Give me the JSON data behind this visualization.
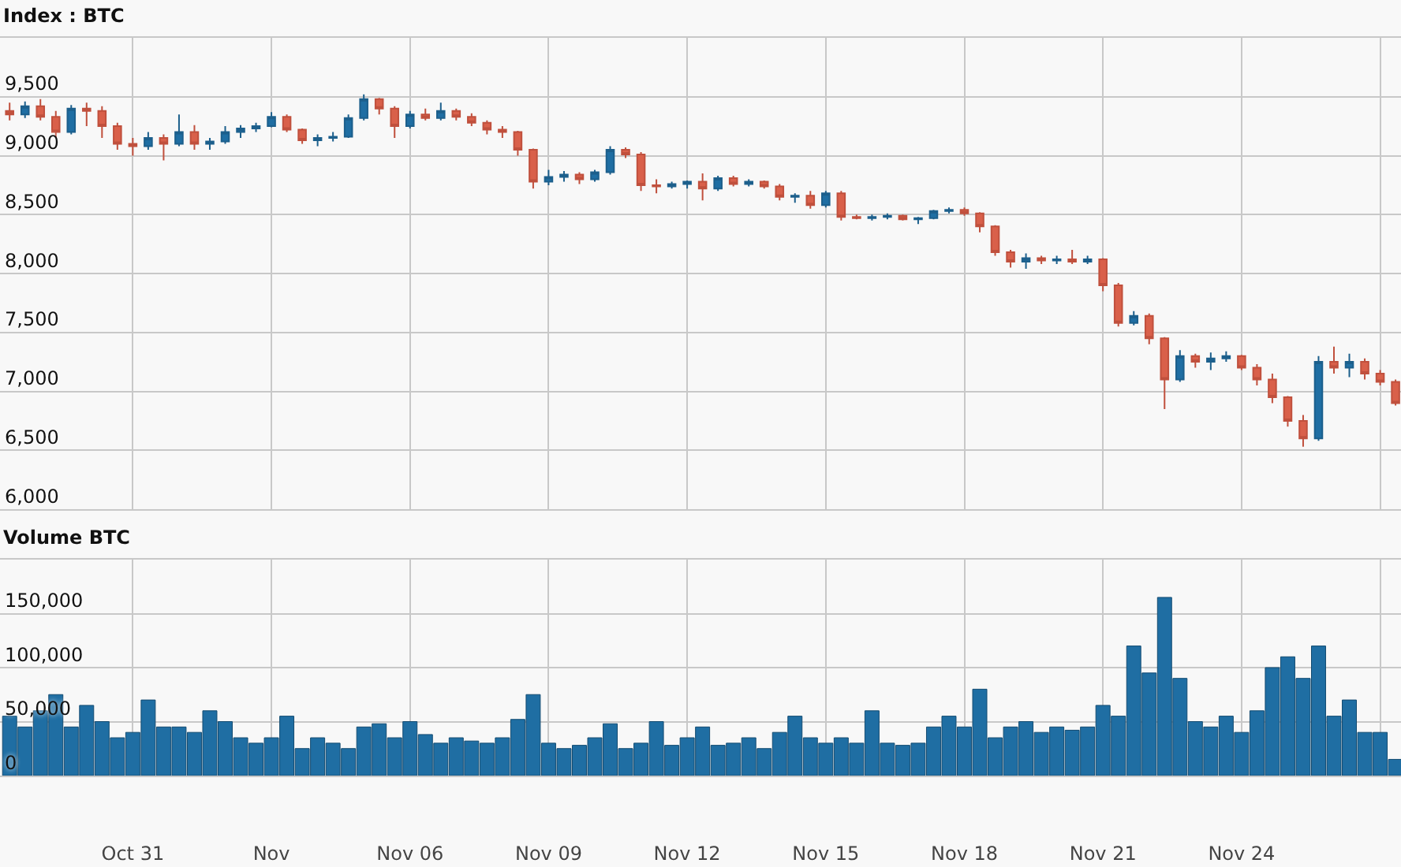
{
  "chart_data": [
    {
      "type": "candlestick",
      "title": "Index : BTC",
      "grid": true,
      "tick_labels": "y",
      "x": [
        "--10-28T08:00",
        "--10-28T16:00",
        "--10-29T00:00",
        "--10-29T08:00",
        "--10-29T16:00",
        "--10-30T00:00",
        "--10-30T08:00",
        "--10-30T16:00",
        "--10-31T00:00",
        "--10-31T08:00",
        "--10-31T16:00",
        "--11-01T00:00",
        "--11-01T08:00",
        "--11-01T16:00",
        "--11-02T00:00",
        "--11-02T08:00",
        "--11-02T16:00",
        "--11-03T00:00",
        "--11-03T08:00",
        "--11-03T16:00",
        "--11-04T00:00",
        "--11-04T08:00",
        "--11-04T16:00",
        "--11-05T00:00",
        "--11-05T08:00",
        "--11-05T16:00",
        "--11-06T00:00",
        "--11-06T08:00",
        "--11-06T16:00",
        "--11-07T00:00",
        "--11-07T08:00",
        "--11-07T16:00",
        "--11-08T00:00",
        "--11-08T08:00",
        "--11-08T16:00",
        "--11-09T00:00",
        "--11-09T08:00",
        "--11-09T16:00",
        "--11-10T00:00",
        "--11-10T08:00",
        "--11-10T16:00",
        "--11-11T00:00",
        "--11-11T08:00",
        "--11-11T16:00",
        "--11-12T00:00",
        "--11-12T08:00",
        "--11-12T16:00",
        "--11-13T00:00",
        "--11-13T08:00",
        "--11-13T16:00",
        "--11-14T00:00",
        "--11-14T08:00",
        "--11-14T16:00",
        "--11-15T00:00",
        "--11-15T08:00",
        "--11-15T16:00",
        "--11-16T00:00",
        "--11-16T08:00",
        "--11-16T16:00",
        "--11-17T00:00",
        "--11-17T08:00",
        "--11-17T16:00",
        "--11-18T00:00",
        "--11-18T08:00",
        "--11-18T16:00",
        "--11-19T00:00",
        "--11-19T08:00",
        "--11-19T16:00",
        "--11-20T00:00",
        "--11-20T08:00",
        "--11-20T16:00",
        "--11-21T00:00",
        "--11-21T08:00",
        "--11-21T16:00",
        "--11-22T00:00",
        "--11-22T08:00",
        "--11-22T16:00",
        "--11-23T00:00",
        "--11-23T08:00",
        "--11-23T16:00",
        "--11-24T00:00",
        "--11-24T08:00",
        "--11-24T16:00",
        "--11-25T00:00",
        "--11-25T08:00",
        "--11-25T16:00",
        "--11-26T00:00",
        "--11-26T08:00",
        "--11-26T16:00",
        "--11-27T00:00",
        "--11-27T08:00"
      ],
      "ohlc": [
        [
          9380,
          9450,
          9300,
          9350
        ],
        [
          9350,
          9460,
          9320,
          9420
        ],
        [
          9420,
          9480,
          9300,
          9330
        ],
        [
          9330,
          9380,
          9150,
          9200
        ],
        [
          9200,
          9430,
          9180,
          9400
        ],
        [
          9400,
          9450,
          9250,
          9380
        ],
        [
          9380,
          9420,
          9150,
          9250
        ],
        [
          9250,
          9280,
          9050,
          9100
        ],
        [
          9100,
          9150,
          9000,
          9080
        ],
        [
          9080,
          9200,
          9050,
          9150
        ],
        [
          9150,
          9180,
          8960,
          9100
        ],
        [
          9100,
          9350,
          9080,
          9200
        ],
        [
          9200,
          9260,
          9050,
          9100
        ],
        [
          9100,
          9150,
          9050,
          9120
        ],
        [
          9120,
          9250,
          9100,
          9200
        ],
        [
          9200,
          9260,
          9150,
          9230
        ],
        [
          9230,
          9280,
          9200,
          9250
        ],
        [
          9250,
          9370,
          9240,
          9330
        ],
        [
          9330,
          9350,
          9200,
          9220
        ],
        [
          9220,
          9230,
          9100,
          9130
        ],
        [
          9130,
          9180,
          9080,
          9150
        ],
        [
          9150,
          9200,
          9120,
          9160
        ],
        [
          9160,
          9350,
          9150,
          9320
        ],
        [
          9320,
          9520,
          9300,
          9480
        ],
        [
          9480,
          9490,
          9350,
          9400
        ],
        [
          9400,
          9420,
          9150,
          9250
        ],
        [
          9250,
          9380,
          9230,
          9350
        ],
        [
          9350,
          9400,
          9300,
          9320
        ],
        [
          9320,
          9450,
          9300,
          9380
        ],
        [
          9380,
          9400,
          9300,
          9330
        ],
        [
          9330,
          9360,
          9250,
          9280
        ],
        [
          9280,
          9300,
          9180,
          9220
        ],
        [
          9220,
          9250,
          9150,
          9200
        ],
        [
          9200,
          9210,
          9000,
          9050
        ],
        [
          9050,
          9060,
          8720,
          8780
        ],
        [
          8780,
          8880,
          8750,
          8820
        ],
        [
          8820,
          8870,
          8780,
          8840
        ],
        [
          8840,
          8860,
          8760,
          8800
        ],
        [
          8800,
          8880,
          8780,
          8860
        ],
        [
          8860,
          9080,
          8840,
          9050
        ],
        [
          9050,
          9070,
          8980,
          9010
        ],
        [
          9010,
          9030,
          8700,
          8750
        ],
        [
          8750,
          8800,
          8680,
          8740
        ],
        [
          8740,
          8780,
          8720,
          8760
        ],
        [
          8760,
          8790,
          8720,
          8780
        ],
        [
          8780,
          8850,
          8620,
          8720
        ],
        [
          8720,
          8830,
          8700,
          8810
        ],
        [
          8810,
          8830,
          8740,
          8760
        ],
        [
          8760,
          8800,
          8740,
          8780
        ],
        [
          8780,
          8790,
          8720,
          8740
        ],
        [
          8740,
          8760,
          8620,
          8650
        ],
        [
          8650,
          8680,
          8600,
          8660
        ],
        [
          8660,
          8700,
          8550,
          8580
        ],
        [
          8580,
          8700,
          8560,
          8680
        ],
        [
          8680,
          8700,
          8450,
          8480
        ],
        [
          8480,
          8500,
          8460,
          8470
        ],
        [
          8470,
          8500,
          8450,
          8480
        ],
        [
          8480,
          8510,
          8460,
          8490
        ],
        [
          8490,
          8500,
          8450,
          8460
        ],
        [
          8460,
          8480,
          8420,
          8470
        ],
        [
          8470,
          8540,
          8460,
          8530
        ],
        [
          8530,
          8560,
          8510,
          8540
        ],
        [
          8540,
          8560,
          8490,
          8510
        ],
        [
          8510,
          8520,
          8350,
          8400
        ],
        [
          8400,
          8410,
          8150,
          8180
        ],
        [
          8180,
          8200,
          8050,
          8100
        ],
        [
          8100,
          8170,
          8040,
          8130
        ],
        [
          8130,
          8150,
          8080,
          8110
        ],
        [
          8110,
          8150,
          8080,
          8120
        ],
        [
          8120,
          8200,
          8080,
          8100
        ],
        [
          8100,
          8150,
          8080,
          8120
        ],
        [
          8120,
          8130,
          7850,
          7900
        ],
        [
          7900,
          7920,
          7550,
          7580
        ],
        [
          7580,
          7680,
          7560,
          7640
        ],
        [
          7640,
          7660,
          7400,
          7450
        ],
        [
          7450,
          7460,
          6850,
          7100
        ],
        [
          7100,
          7350,
          7080,
          7300
        ],
        [
          7300,
          7320,
          7200,
          7250
        ],
        [
          7250,
          7330,
          7180,
          7280
        ],
        [
          7280,
          7340,
          7250,
          7300
        ],
        [
          7300,
          7310,
          7180,
          7200
        ],
        [
          7200,
          7230,
          7050,
          7100
        ],
        [
          7100,
          7150,
          6900,
          6950
        ],
        [
          6950,
          6960,
          6700,
          6750
        ],
        [
          6750,
          6800,
          6530,
          6600
        ],
        [
          6600,
          7300,
          6580,
          7250
        ],
        [
          7250,
          7380,
          7150,
          7200
        ],
        [
          7200,
          7320,
          7120,
          7250
        ],
        [
          7250,
          7280,
          7100,
          7150
        ],
        [
          7150,
          7180,
          7050,
          7080
        ],
        [
          7080,
          7100,
          6880,
          6900
        ]
      ],
      "xlim": [
        "--10-28T03:00",
        "--11-27T10:50"
      ],
      "xticks": [
        {
          "value": "--10-31",
          "label": "Oct 31"
        },
        {
          "value": "--11-03",
          "label": "Nov"
        },
        {
          "value": "--11-06",
          "label": "Nov 06"
        },
        {
          "value": "--11-09",
          "label": "Nov 09"
        },
        {
          "value": "--11-12",
          "label": "Nov 12"
        },
        {
          "value": "--11-15",
          "label": "Nov 15"
        },
        {
          "value": "--11-18",
          "label": "Nov 18"
        },
        {
          "value": "--11-21",
          "label": "Nov 21"
        },
        {
          "value": "--11-24",
          "label": "Nov 24"
        },
        {
          "value": "--11-27",
          "label": null
        }
      ],
      "ylim": [
        6000,
        10000
      ],
      "yticks": [
        {
          "value": 6000,
          "label": "6,000"
        },
        {
          "value": 6500,
          "label": "6,500"
        },
        {
          "value": 7000,
          "label": "7,000"
        },
        {
          "value": 7500,
          "label": "7,500"
        },
        {
          "value": 8000,
          "label": "8,000"
        },
        {
          "value": 8500,
          "label": "8,500"
        },
        {
          "value": 9000,
          "label": "9,000"
        },
        {
          "value": 9500,
          "label": "9,500"
        }
      ]
    },
    {
      "type": "bar",
      "title": "Volume BTC",
      "grid": true,
      "color": "#1f6ea3",
      "x": [
        "--10-28T08:00",
        "--10-28T16:00",
        "--10-29T00:00",
        "--10-29T08:00",
        "--10-29T16:00",
        "--10-30T00:00",
        "--10-30T08:00",
        "--10-30T16:00",
        "--10-31T00:00",
        "--10-31T08:00",
        "--10-31T16:00",
        "--11-01T00:00",
        "--11-01T08:00",
        "--11-01T16:00",
        "--11-02T00:00",
        "--11-02T08:00",
        "--11-02T16:00",
        "--11-03T00:00",
        "--11-03T08:00",
        "--11-03T16:00",
        "--11-04T00:00",
        "--11-04T08:00",
        "--11-04T16:00",
        "--11-05T00:00",
        "--11-05T08:00",
        "--11-05T16:00",
        "--11-06T00:00",
        "--11-06T08:00",
        "--11-06T16:00",
        "--11-07T00:00",
        "--11-07T08:00",
        "--11-07T16:00",
        "--11-08T00:00",
        "--11-08T08:00",
        "--11-08T16:00",
        "--11-09T00:00",
        "--11-09T08:00",
        "--11-09T16:00",
        "--11-10T00:00",
        "--11-10T08:00",
        "--11-10T16:00",
        "--11-11T00:00",
        "--11-11T08:00",
        "--11-11T16:00",
        "--11-12T00:00",
        "--11-12T08:00",
        "--11-12T16:00",
        "--11-13T00:00",
        "--11-13T08:00",
        "--11-13T16:00",
        "--11-14T00:00",
        "--11-14T08:00",
        "--11-14T16:00",
        "--11-15T00:00",
        "--11-15T08:00",
        "--11-15T16:00",
        "--11-16T00:00",
        "--11-16T08:00",
        "--11-16T16:00",
        "--11-17T00:00",
        "--11-17T08:00",
        "--11-17T16:00",
        "--11-18T00:00",
        "--11-18T08:00",
        "--11-18T16:00",
        "--11-19T00:00",
        "--11-19T08:00",
        "--11-19T16:00",
        "--11-20T00:00",
        "--11-20T08:00",
        "--11-20T16:00",
        "--11-21T00:00",
        "--11-21T08:00",
        "--11-21T16:00",
        "--11-22T00:00",
        "--11-22T08:00",
        "--11-22T16:00",
        "--11-23T00:00",
        "--11-23T08:00",
        "--11-23T16:00",
        "--11-24T00:00",
        "--11-24T08:00",
        "--11-24T16:00",
        "--11-25T00:00",
        "--11-25T08:00",
        "--11-25T16:00",
        "--11-26T00:00",
        "--11-26T08:00",
        "--11-26T16:00",
        "--11-27T00:00",
        "--11-27T08:00"
      ],
      "values": [
        55000,
        45000,
        60000,
        75000,
        45000,
        65000,
        50000,
        35000,
        40000,
        70000,
        45000,
        45000,
        40000,
        60000,
        50000,
        35000,
        30000,
        35000,
        55000,
        25000,
        35000,
        30000,
        25000,
        45000,
        48000,
        35000,
        50000,
        38000,
        30000,
        35000,
        32000,
        30000,
        35000,
        52000,
        75000,
        30000,
        25000,
        28000,
        35000,
        48000,
        25000,
        30000,
        50000,
        28000,
        35000,
        45000,
        28000,
        30000,
        35000,
        25000,
        40000,
        55000,
        35000,
        30000,
        35000,
        30000,
        60000,
        30000,
        28000,
        30000,
        45000,
        55000,
        45000,
        80000,
        35000,
        45000,
        50000,
        40000,
        45000,
        42000,
        45000,
        65000,
        55000,
        120000,
        95000,
        165000,
        90000,
        50000,
        45000,
        55000,
        40000,
        60000,
        100000,
        110000,
        90000,
        120000,
        55000,
        70000,
        40000,
        40000,
        15000
      ],
      "xlim": [
        "--10-28T03:00",
        "--11-27T10:50"
      ],
      "xticks": [
        {
          "value": "--10-31",
          "label": "Oct 31"
        },
        {
          "value": "--11-03",
          "label": "Nov"
        },
        {
          "value": "--11-06",
          "label": "Nov 06"
        },
        {
          "value": "--11-09",
          "label": "Nov 09"
        },
        {
          "value": "--11-12",
          "label": "Nov 12"
        },
        {
          "value": "--11-15",
          "label": "Nov 15"
        },
        {
          "value": "--11-18",
          "label": "Nov 18"
        },
        {
          "value": "--11-21",
          "label": "Nov 21"
        },
        {
          "value": "--11-24",
          "label": "Nov 24"
        },
        {
          "value": "--11-27",
          "label": null
        }
      ],
      "ylim": [
        0,
        200000
      ],
      "yticks": [
        {
          "value": 0,
          "label": "0"
        },
        {
          "value": 50000,
          "label": "50,000"
        },
        {
          "value": 100000,
          "label": "100,000"
        },
        {
          "value": 150000,
          "label": "150,000"
        }
      ]
    }
  ]
}
